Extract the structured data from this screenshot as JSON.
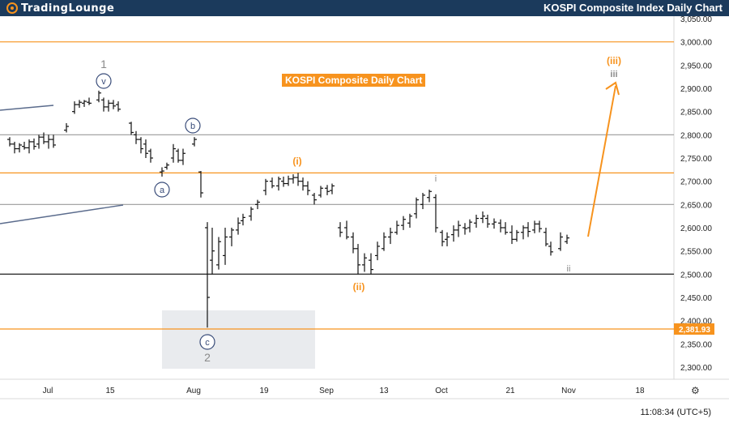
{
  "header": {
    "logo_part1": "TradingLounge",
    "title": "KOSPI Composite Index Daily Chart"
  },
  "chart_label": "KOSPI Composite Daily Chart",
  "clock": "11:08:34 (UTC+5)",
  "colors": {
    "header_bg": "#1b3a5c",
    "orange": "#f7931e",
    "wave_blue": "#3a4d7a",
    "wave_gray": "#8a8a8a",
    "candle": "#111111"
  },
  "chart_data": {
    "type": "ohlc",
    "y_axis_labels": [
      "3,050.00",
      "3,000.00",
      "2,950.00",
      "2,900.00",
      "2,850.00",
      "2,800.00",
      "2,750.00",
      "2,700.00",
      "2,650.00",
      "2,600.00",
      "2,550.00",
      "2,500.00",
      "2,450.00",
      "2,400.00",
      "2,350.00",
      "2,300.00"
    ],
    "y_values": [
      3050,
      3000,
      2950,
      2900,
      2850,
      2800,
      2750,
      2700,
      2650,
      2600,
      2550,
      2500,
      2450,
      2400,
      2350,
      2300
    ],
    "ylim": [
      2295,
      3055
    ],
    "x_axis_labels": [
      "Jul",
      "15",
      "Aug",
      "19",
      "Sep",
      "13",
      "Oct",
      "21",
      "Nov",
      "18"
    ],
    "price_marker": "2,381.93",
    "horizontal_levels": [
      {
        "value": 3000,
        "color": "#f7931e"
      },
      {
        "value": 2800,
        "color": "#9a9a9a"
      },
      {
        "value": 2718,
        "color": "#f7931e"
      },
      {
        "value": 2650,
        "color": "#9a9a9a"
      },
      {
        "value": 2500,
        "color": "#333333"
      },
      {
        "value": 2381.93,
        "color": "#f7931e"
      }
    ],
    "wave_labels": [
      {
        "text": "1",
        "style": "gray"
      },
      {
        "text": "v",
        "style": "circle"
      },
      {
        "text": "b",
        "style": "circle"
      },
      {
        "text": "a",
        "style": "circle"
      },
      {
        "text": "c",
        "style": "circle"
      },
      {
        "text": "2",
        "style": "gray"
      },
      {
        "text": "(i)",
        "style": "orange"
      },
      {
        "text": "(ii)",
        "style": "orange"
      },
      {
        "text": "i",
        "style": "gray"
      },
      {
        "text": "ii",
        "style": "gray"
      },
      {
        "text": "(iii)",
        "style": "orange"
      },
      {
        "text": "iii",
        "style": "gray"
      }
    ],
    "candles": [
      {
        "o": 2790,
        "h": 2795,
        "l": 2775,
        "c": 2780
      },
      {
        "o": 2780,
        "h": 2785,
        "l": 2760,
        "c": 2770
      },
      {
        "o": 2770,
        "h": 2782,
        "l": 2762,
        "c": 2778
      },
      {
        "o": 2775,
        "h": 2785,
        "l": 2768,
        "c": 2772
      },
      {
        "o": 2772,
        "h": 2790,
        "l": 2760,
        "c": 2785
      },
      {
        "o": 2785,
        "h": 2792,
        "l": 2768,
        "c": 2775
      },
      {
        "o": 2780,
        "h": 2800,
        "l": 2770,
        "c": 2795
      },
      {
        "o": 2795,
        "h": 2805,
        "l": 2780,
        "c": 2785
      },
      {
        "o": 2785,
        "h": 2800,
        "l": 2770,
        "c": 2790
      },
      {
        "o": 2790,
        "h": 2800,
        "l": 2772,
        "c": 2778
      },
      {
        "o": 2810,
        "h": 2825,
        "l": 2805,
        "c": 2818
      },
      {
        "o": 2850,
        "h": 2872,
        "l": 2845,
        "c": 2865
      },
      {
        "o": 2865,
        "h": 2875,
        "l": 2858,
        "c": 2870
      },
      {
        "o": 2868,
        "h": 2875,
        "l": 2860,
        "c": 2872
      },
      {
        "o": 2870,
        "h": 2880,
        "l": 2864,
        "c": 2868
      },
      {
        "o": 2875,
        "h": 2895,
        "l": 2870,
        "c": 2890
      },
      {
        "o": 2875,
        "h": 2880,
        "l": 2850,
        "c": 2860
      },
      {
        "o": 2860,
        "h": 2875,
        "l": 2850,
        "c": 2868
      },
      {
        "o": 2868,
        "h": 2875,
        "l": 2855,
        "c": 2862
      },
      {
        "o": 2865,
        "h": 2872,
        "l": 2850,
        "c": 2855
      },
      {
        "o": 2825,
        "h": 2828,
        "l": 2800,
        "c": 2805
      },
      {
        "o": 2800,
        "h": 2808,
        "l": 2780,
        "c": 2790
      },
      {
        "o": 2790,
        "h": 2795,
        "l": 2760,
        "c": 2770
      },
      {
        "o": 2780,
        "h": 2790,
        "l": 2750,
        "c": 2760
      },
      {
        "o": 2765,
        "h": 2770,
        "l": 2740,
        "c": 2750
      },
      {
        "o": 2720,
        "h": 2730,
        "l": 2710,
        "c": 2722
      },
      {
        "o": 2730,
        "h": 2740,
        "l": 2725,
        "c": 2735
      },
      {
        "o": 2750,
        "h": 2780,
        "l": 2740,
        "c": 2770
      },
      {
        "o": 2765,
        "h": 2770,
        "l": 2740,
        "c": 2745
      },
      {
        "o": 2745,
        "h": 2770,
        "l": 2735,
        "c": 2760
      },
      {
        "o": 2780,
        "h": 2795,
        "l": 2775,
        "c": 2790
      },
      {
        "o": 2720,
        "h": 2722,
        "l": 2665,
        "c": 2675
      },
      {
        "o": 2600,
        "h": 2612,
        "l": 2385,
        "c": 2450
      },
      {
        "o": 2530,
        "h": 2600,
        "l": 2500,
        "c": 2550
      },
      {
        "o": 2520,
        "h": 2580,
        "l": 2510,
        "c": 2570
      },
      {
        "o": 2540,
        "h": 2600,
        "l": 2520,
        "c": 2580
      },
      {
        "o": 2580,
        "h": 2600,
        "l": 2560,
        "c": 2595
      },
      {
        "o": 2595,
        "h": 2622,
        "l": 2585,
        "c": 2610
      },
      {
        "o": 2615,
        "h": 2630,
        "l": 2605,
        "c": 2622
      },
      {
        "o": 2625,
        "h": 2645,
        "l": 2615,
        "c": 2640
      },
      {
        "o": 2650,
        "h": 2660,
        "l": 2640,
        "c": 2655
      },
      {
        "o": 2680,
        "h": 2705,
        "l": 2670,
        "c": 2700
      },
      {
        "o": 2700,
        "h": 2708,
        "l": 2685,
        "c": 2690
      },
      {
        "o": 2690,
        "h": 2710,
        "l": 2680,
        "c": 2705
      },
      {
        "o": 2700,
        "h": 2710,
        "l": 2688,
        "c": 2695
      },
      {
        "o": 2695,
        "h": 2712,
        "l": 2690,
        "c": 2705
      },
      {
        "o": 2705,
        "h": 2715,
        "l": 2695,
        "c": 2708
      },
      {
        "o": 2708,
        "h": 2718,
        "l": 2690,
        "c": 2700
      },
      {
        "o": 2700,
        "h": 2708,
        "l": 2680,
        "c": 2690
      },
      {
        "o": 2690,
        "h": 2700,
        "l": 2670,
        "c": 2680
      },
      {
        "o": 2670,
        "h": 2675,
        "l": 2650,
        "c": 2660
      },
      {
        "o": 2670,
        "h": 2690,
        "l": 2665,
        "c": 2685
      },
      {
        "o": 2685,
        "h": 2692,
        "l": 2670,
        "c": 2678
      },
      {
        "o": 2680,
        "h": 2695,
        "l": 2672,
        "c": 2690
      },
      {
        "o": 2600,
        "h": 2612,
        "l": 2580,
        "c": 2590
      },
      {
        "o": 2600,
        "h": 2615,
        "l": 2575,
        "c": 2580
      },
      {
        "o": 2580,
        "h": 2590,
        "l": 2545,
        "c": 2555
      },
      {
        "o": 2555,
        "h": 2565,
        "l": 2500,
        "c": 2520
      },
      {
        "o": 2520,
        "h": 2545,
        "l": 2505,
        "c": 2535
      },
      {
        "o": 2530,
        "h": 2545,
        "l": 2500,
        "c": 2510
      },
      {
        "o": 2540,
        "h": 2570,
        "l": 2530,
        "c": 2560
      },
      {
        "o": 2555,
        "h": 2590,
        "l": 2550,
        "c": 2580
      },
      {
        "o": 2580,
        "h": 2600,
        "l": 2565,
        "c": 2590
      },
      {
        "o": 2590,
        "h": 2615,
        "l": 2585,
        "c": 2605
      },
      {
        "o": 2605,
        "h": 2625,
        "l": 2595,
        "c": 2618
      },
      {
        "o": 2610,
        "h": 2630,
        "l": 2600,
        "c": 2625
      },
      {
        "o": 2630,
        "h": 2665,
        "l": 2620,
        "c": 2660
      },
      {
        "o": 2650,
        "h": 2675,
        "l": 2640,
        "c": 2670
      },
      {
        "o": 2665,
        "h": 2682,
        "l": 2655,
        "c": 2678
      },
      {
        "o": 2665,
        "h": 2672,
        "l": 2590,
        "c": 2600
      },
      {
        "o": 2590,
        "h": 2595,
        "l": 2560,
        "c": 2570
      },
      {
        "o": 2575,
        "h": 2590,
        "l": 2560,
        "c": 2580
      },
      {
        "o": 2585,
        "h": 2605,
        "l": 2570,
        "c": 2595
      },
      {
        "o": 2595,
        "h": 2615,
        "l": 2580,
        "c": 2605
      },
      {
        "o": 2600,
        "h": 2610,
        "l": 2585,
        "c": 2598
      },
      {
        "o": 2600,
        "h": 2618,
        "l": 2590,
        "c": 2612
      },
      {
        "o": 2610,
        "h": 2628,
        "l": 2600,
        "c": 2620
      },
      {
        "o": 2620,
        "h": 2635,
        "l": 2610,
        "c": 2625
      },
      {
        "o": 2620,
        "h": 2628,
        "l": 2600,
        "c": 2608
      },
      {
        "o": 2608,
        "h": 2620,
        "l": 2598,
        "c": 2612
      },
      {
        "o": 2610,
        "h": 2618,
        "l": 2590,
        "c": 2600
      },
      {
        "o": 2600,
        "h": 2612,
        "l": 2585,
        "c": 2590
      },
      {
        "o": 2590,
        "h": 2605,
        "l": 2565,
        "c": 2575
      },
      {
        "o": 2575,
        "h": 2595,
        "l": 2570,
        "c": 2590
      },
      {
        "o": 2590,
        "h": 2605,
        "l": 2575,
        "c": 2600
      },
      {
        "o": 2600,
        "h": 2612,
        "l": 2580,
        "c": 2592
      },
      {
        "o": 2595,
        "h": 2615,
        "l": 2588,
        "c": 2608
      },
      {
        "o": 2608,
        "h": 2615,
        "l": 2590,
        "c": 2598
      },
      {
        "o": 2590,
        "h": 2600,
        "l": 2560,
        "c": 2565
      },
      {
        "o": 2560,
        "h": 2570,
        "l": 2540,
        "c": 2548
      },
      {
        "o": 2555,
        "h": 2590,
        "l": 2550,
        "c": 2580
      },
      {
        "o": 2570,
        "h": 2585,
        "l": 2565,
        "c": 2578
      }
    ]
  }
}
